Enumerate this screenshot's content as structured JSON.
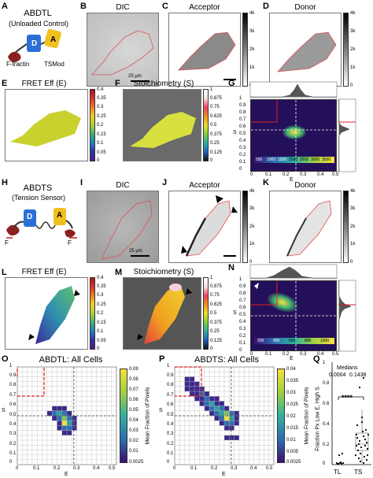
{
  "labels": {
    "A": "A",
    "B": "B",
    "C": "C",
    "D": "D",
    "E": "E",
    "F": "F",
    "G": "G",
    "H": "H",
    "I": "I",
    "J": "J",
    "K": "K",
    "L": "L",
    "M": "M",
    "N": "N",
    "O": "O",
    "P": "P",
    "Q": "Q"
  },
  "rowA": {
    "title": "ABDTL",
    "subtitle": "(Unloaded Control)",
    "tag_d": "D",
    "tag_a": "A",
    "ftractin": "F-tractin",
    "tsmod": "TSMod",
    "dic": "DIC",
    "acceptor": "Acceptor",
    "donor": "Donor",
    "scale": "25 μm",
    "gray_ticks": [
      "4k",
      "3k",
      "2k",
      "1k",
      "0"
    ]
  },
  "rowE": {
    "fret_title": "FRET Eff (E)",
    "fret_ticks": [
      "0.4",
      "0.35",
      "0.3",
      "0.25",
      "0.2",
      "0.15",
      "0.1",
      "0.05",
      "0"
    ],
    "stoich_title": "Stoichiometry (S)",
    "stoich_ticks": [
      "1",
      "0.875",
      "0.75",
      "0.625",
      "0.5",
      "0.375",
      "0.25",
      "0.125",
      "0"
    ]
  },
  "panelG": {
    "ylabel": "S",
    "xlabel": "E",
    "yticks": [
      "1",
      "0.9",
      "0.8",
      "0.7",
      "0.6",
      "0.5",
      "0.4",
      "0.3",
      "0.2",
      "0.1",
      "0"
    ],
    "xticks": [
      "0",
      "0.1",
      "0.2",
      "0.3",
      "0.4",
      "0.5"
    ],
    "cbar_ticks": [
      "500",
      "1000",
      "1500",
      "2000",
      "2500",
      "3000",
      "3500"
    ]
  },
  "rowH": {
    "title": "ABDTS",
    "subtitle": "(Tension Sensor)",
    "tag_d": "D",
    "tag_a": "A",
    "force_left": "F",
    "force_right": "F",
    "dic": "DIC",
    "acceptor": "Acceptor",
    "donor": "Donor",
    "scale": "25 μm",
    "gray_ticks": [
      "4k",
      "3k",
      "2k",
      "1k",
      "0"
    ]
  },
  "rowL": {
    "fret_title": "FRET Eff (E)",
    "fret_ticks": [
      "0.4",
      "0.35",
      "0.3",
      "0.25",
      "0.2",
      "0.15",
      "0.1",
      "0.05",
      "0"
    ],
    "stoich_title": "Stoichiometry (S)",
    "stoich_ticks": [
      "1",
      "0.875",
      "0.75",
      "0.625",
      "0.5",
      "0.375",
      "0.25",
      "0.125",
      "0"
    ]
  },
  "panelN": {
    "ylabel": "S",
    "xlabel": "E",
    "yticks": [
      "1",
      "0.9",
      "0.8",
      "0.7",
      "0.6",
      "0.5",
      "0.4",
      "0.3",
      "0.2",
      "0.1",
      "0"
    ],
    "xticks": [
      "0",
      "0.1",
      "0.2",
      "0.3",
      "0.4",
      "0.5"
    ],
    "cbar_ticks": [
      "200",
      "400",
      "600",
      "800",
      "1000"
    ]
  },
  "panelO": {
    "title": "ABDTL: All Cells",
    "ylabel": "S",
    "xlabel": "E",
    "yticks": [
      "1",
      "0.9",
      "0.8",
      "0.7",
      "0.6",
      "0.5",
      "0.4",
      "0.3",
      "0.2",
      "0.1",
      "0"
    ],
    "xticks": [
      "0",
      "0.1",
      "0.2",
      "0.3",
      "0.4",
      "0.5"
    ],
    "cbar_label": "Mean Fraction of Pixels",
    "cbar_ticks": [
      "0.09",
      "0.08",
      "0.07",
      "0.06",
      "0.05",
      "0.04",
      "0.03",
      "0.02",
      "0.01",
      "0.0025"
    ]
  },
  "panelP": {
    "title": "ABDTS: All Cells",
    "ylabel": "S",
    "xlabel": "E",
    "yticks": [
      "1",
      "0.9",
      "0.8",
      "0.7",
      "0.6",
      "0.5",
      "0.4",
      "0.3",
      "0.2",
      "0.1",
      "0"
    ],
    "xticks": [
      "0",
      "0.1",
      "0.2",
      "0.3",
      "0.4",
      "0.5"
    ],
    "cbar_label": "Mean Fraction of Pixels",
    "cbar_ticks": [
      "0.04",
      "0.035",
      "0.03",
      "0.025",
      "0.02",
      "0.015",
      "0.01",
      "0.005",
      "0.0025"
    ]
  },
  "panelQ": {
    "medians_label": "Medians",
    "median_tl": "0.0004",
    "median_ts": "0.1438",
    "significance": "****",
    "ylabel": "Fraction Px Low E, High S",
    "yticks": [
      "1",
      "0.8",
      "0.6",
      "0.4",
      "0.2",
      "0"
    ],
    "categories": [
      "TL",
      "TS"
    ]
  }
}
